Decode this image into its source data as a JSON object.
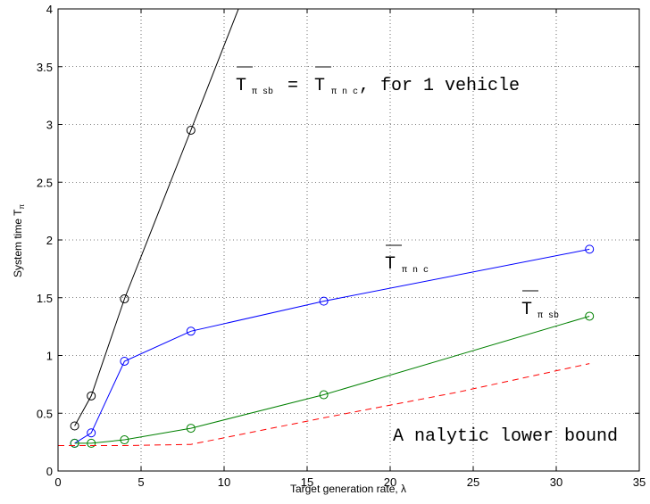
{
  "chart_data": {
    "type": "line",
    "xlabel": "Target generation rate, λ",
    "ylabel": "System time T",
    "ylabel_sub": "π",
    "xlim": [
      0,
      35
    ],
    "ylim": [
      0,
      4
    ],
    "xticks": [
      0,
      5,
      10,
      15,
      20,
      25,
      30,
      35
    ],
    "yticks": [
      0,
      0.5,
      1,
      1.5,
      2,
      2.5,
      3,
      3.5,
      4
    ],
    "xtick_labels": [
      "0",
      "5",
      "10",
      "15",
      "20",
      "25",
      "30",
      "35"
    ],
    "ytick_labels": [
      "0",
      "0.5",
      "1",
      "1.5",
      "2",
      "2.5",
      "3",
      "3.5",
      "4"
    ],
    "grid": true,
    "series": [
      {
        "id": "single",
        "color": "#000000",
        "style": "solid",
        "marker": "circle",
        "x": [
          1,
          2,
          4,
          8,
          11
        ],
        "y": [
          0.39,
          0.65,
          1.49,
          2.95,
          4.05
        ]
      },
      {
        "id": "nc",
        "color": "#0000ff",
        "style": "solid",
        "marker": "circle",
        "x": [
          1,
          2,
          4,
          8,
          16,
          32
        ],
        "y": [
          0.24,
          0.33,
          0.95,
          1.21,
          1.47,
          1.92
        ]
      },
      {
        "id": "sb",
        "color": "#008000",
        "style": "solid",
        "marker": "circle",
        "x": [
          1,
          2,
          4,
          8,
          16,
          32
        ],
        "y": [
          0.24,
          0.24,
          0.27,
          0.37,
          0.66,
          1.34
        ]
      },
      {
        "id": "lower",
        "color": "#ff0000",
        "style": "dashed",
        "marker": "none",
        "x": [
          0,
          1,
          2,
          4,
          8,
          16,
          24,
          32
        ],
        "y": [
          0.22,
          0.22,
          0.22,
          0.22,
          0.23,
          0.46,
          0.68,
          0.93
        ]
      }
    ],
    "annotations": {
      "single": {
        "T": "T",
        "sub1": "π sb",
        "eq": "=",
        "sub2": "π n c",
        "rest": ", for 1 vehicle"
      },
      "nc": {
        "T": "T",
        "sub": "π n c"
      },
      "sb": {
        "T": "T",
        "sub": "π sb"
      },
      "lower": {
        "text": "A nalytic lower bound"
      }
    }
  }
}
